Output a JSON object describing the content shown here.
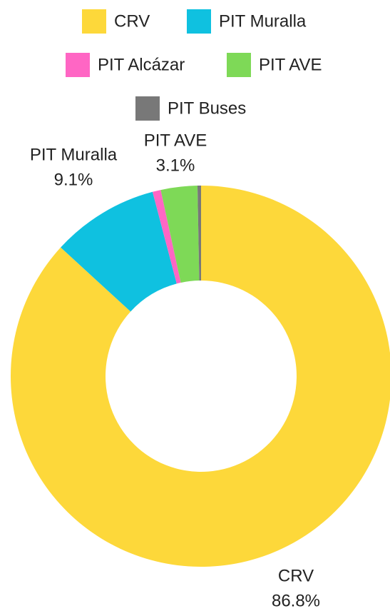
{
  "chart_data": {
    "type": "donut",
    "categories": [
      "CRV",
      "PIT Muralla",
      "PIT Alcázar",
      "PIT AVE",
      "PIT Buses"
    ],
    "values": [
      86.8,
      9.1,
      0.7,
      3.1,
      0.3
    ],
    "value_labels": [
      "86.8%",
      "9.1%",
      null,
      "3.1%",
      null
    ],
    "colors": [
      "#fdd83a",
      "#0fc1e0",
      "#ff66c4",
      "#7ed957",
      "#787878"
    ],
    "legend": "top"
  }
}
